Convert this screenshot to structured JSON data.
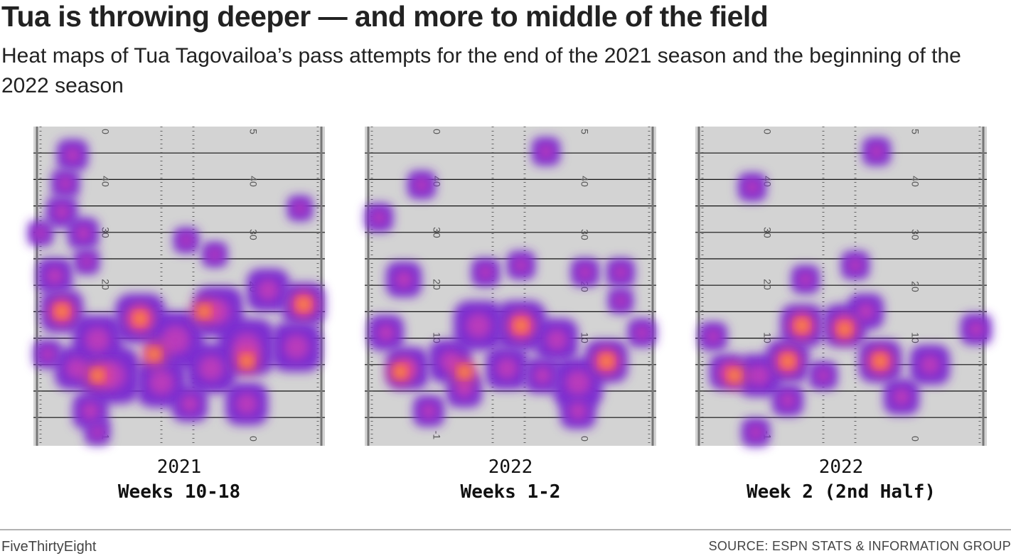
{
  "header": {
    "title": "Tua is throwing deeper — and more to middle of the field",
    "subtitle": "Heat maps of Tua Tagovailoa’s pass attempts for the end of the 2021 season and the beginning of the 2022 season"
  },
  "field": {
    "left_numbers": [
      "0",
      "40",
      "30",
      "20",
      "10",
      "-1"
    ],
    "right_numbers": [
      "5",
      "40",
      "30",
      "20",
      "10",
      "0"
    ]
  },
  "panels": [
    {
      "year": "2021",
      "label": "Weeks 10-18"
    },
    {
      "year": "2022",
      "label": "Weeks 1-2"
    },
    {
      "year": "2022",
      "label": "Week 2 (2nd Half)"
    }
  ],
  "footer": {
    "brand": "FiveThirtyEight",
    "source": "SOURCE: ESPN STATS & INFORMATION GROUP"
  }
}
